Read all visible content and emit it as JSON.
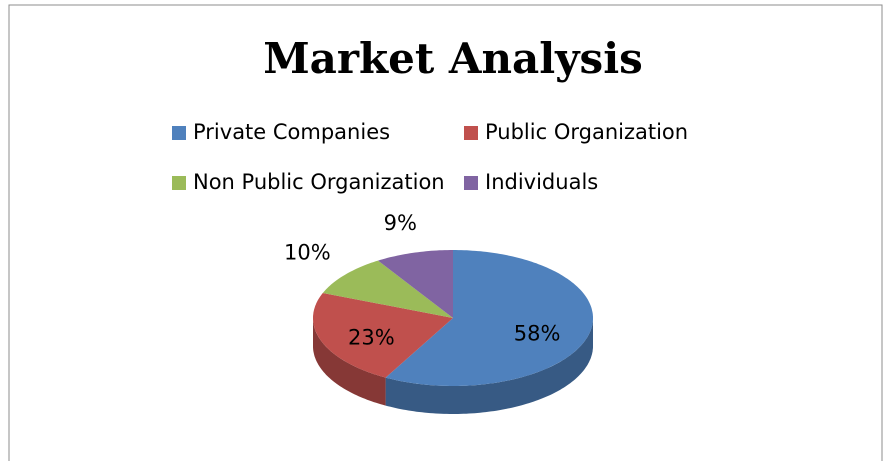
{
  "chart_data": {
    "type": "pie",
    "title": "Market Analysis",
    "categories": [
      "Private Companies",
      "Public Organization",
      "Non Public Organization",
      "Individuals"
    ],
    "values": [
      58,
      23,
      10,
      9
    ],
    "value_labels": [
      "58%",
      "23%",
      "10%",
      "9%"
    ],
    "colors": [
      "#4f81bd",
      "#c0504d",
      "#9bbb59",
      "#8064a2"
    ],
    "legend": "top"
  }
}
